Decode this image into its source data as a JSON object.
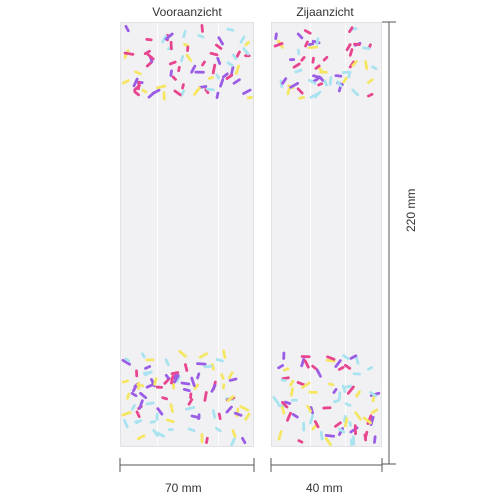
{
  "views": {
    "front_label": "Vooraanzicht",
    "side_label": "Zijaanzicht"
  },
  "dimensions": {
    "front_width": "70 mm",
    "side_width": "40 mm",
    "height": "220 mm"
  },
  "colors": {
    "bag": "#f1f1f3",
    "sprinkles": [
      "#e8458f",
      "#9b5de5",
      "#f5e663",
      "#a9e3f0",
      "#ffffff"
    ],
    "dimension_line": "#555555"
  }
}
